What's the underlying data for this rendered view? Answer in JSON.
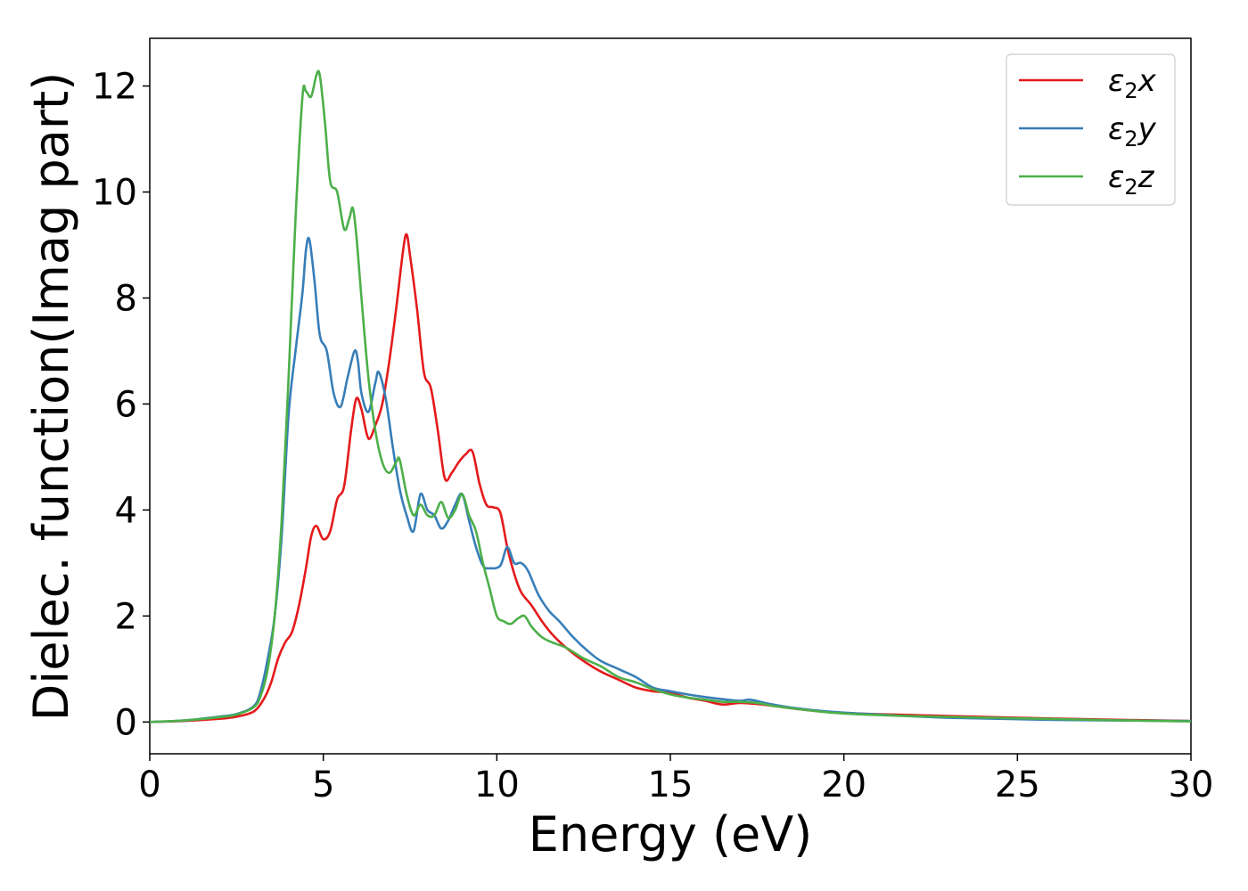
{
  "chart_data": {
    "type": "line",
    "xlabel": "Energy (eV)",
    "ylabel": "Dielec. function(Imag part)",
    "xlim": [
      0,
      30
    ],
    "ylim": [
      -0.6,
      12.9
    ],
    "xticks": [
      0,
      5,
      10,
      15,
      20,
      25,
      30
    ],
    "yticks": [
      0,
      2,
      4,
      6,
      8,
      10,
      12
    ],
    "grid": false,
    "legend_position": "top-right",
    "series": [
      {
        "name": "ε₂x",
        "legend_base": "ε",
        "legend_sub": "2",
        "legend_suffix": "x",
        "color": "#e41a1c",
        "x": [
          0,
          1,
          2,
          2.5,
          3,
          3.3,
          3.5,
          3.7,
          3.9,
          4.1,
          4.3,
          4.5,
          4.65,
          4.8,
          5.0,
          5.2,
          5.4,
          5.6,
          5.8,
          5.95,
          6.1,
          6.3,
          6.5,
          6.7,
          6.9,
          7.1,
          7.3,
          7.4,
          7.5,
          7.7,
          7.9,
          8.1,
          8.3,
          8.5,
          8.7,
          8.9,
          9.1,
          9.3,
          9.5,
          9.7,
          9.9,
          10.1,
          10.3,
          10.5,
          10.7,
          11.0,
          11.3,
          11.6,
          12.0,
          12.5,
          13.0,
          13.5,
          14.0,
          14.5,
          15.0,
          15.5,
          16.0,
          16.5,
          17.0,
          17.5,
          18.0,
          19.0,
          20.0,
          22.0,
          25.0,
          28.0,
          30.0
        ],
        "y": [
          0.0,
          0.02,
          0.06,
          0.1,
          0.2,
          0.45,
          0.75,
          1.2,
          1.5,
          1.7,
          2.2,
          2.9,
          3.5,
          3.7,
          3.45,
          3.6,
          4.2,
          4.45,
          5.5,
          6.1,
          5.9,
          5.35,
          5.6,
          6.0,
          6.8,
          7.8,
          8.9,
          9.2,
          8.8,
          7.8,
          6.6,
          6.3,
          5.5,
          4.6,
          4.7,
          4.9,
          5.05,
          5.1,
          4.5,
          4.1,
          4.05,
          3.95,
          3.3,
          2.8,
          2.45,
          2.2,
          1.9,
          1.65,
          1.4,
          1.15,
          0.95,
          0.8,
          0.65,
          0.58,
          0.55,
          0.46,
          0.4,
          0.33,
          0.36,
          0.34,
          0.3,
          0.22,
          0.17,
          0.13,
          0.08,
          0.04,
          0.02
        ]
      },
      {
        "name": "ε₂y",
        "legend_base": "ε",
        "legend_sub": "2",
        "legend_suffix": "y",
        "color": "#377eb8",
        "x": [
          0,
          1,
          2,
          2.5,
          3,
          3.2,
          3.4,
          3.6,
          3.8,
          4.0,
          4.2,
          4.4,
          4.5,
          4.6,
          4.75,
          4.9,
          5.1,
          5.3,
          5.5,
          5.7,
          5.9,
          6.0,
          6.1,
          6.3,
          6.5,
          6.6,
          6.8,
          7.0,
          7.2,
          7.4,
          7.6,
          7.8,
          8.0,
          8.2,
          8.4,
          8.6,
          8.8,
          9.0,
          9.2,
          9.4,
          9.6,
          9.8,
          10.1,
          10.3,
          10.5,
          10.7,
          10.9,
          11.2,
          11.5,
          11.8,
          12.2,
          12.6,
          13.0,
          13.5,
          14.0,
          14.5,
          15.0,
          15.5,
          16.0,
          16.5,
          17.0,
          17.3,
          17.8,
          18.5,
          19.5,
          21.0,
          23.0,
          26.0,
          30.0
        ],
        "y": [
          0.0,
          0.03,
          0.1,
          0.15,
          0.3,
          0.6,
          1.2,
          2.0,
          3.5,
          5.8,
          7.0,
          8.1,
          8.9,
          9.1,
          8.3,
          7.3,
          7.0,
          6.2,
          5.95,
          6.5,
          7.0,
          6.8,
          6.2,
          5.85,
          6.4,
          6.6,
          6.1,
          5.2,
          4.4,
          3.9,
          3.6,
          4.3,
          4.0,
          3.9,
          3.65,
          3.8,
          4.1,
          4.3,
          3.8,
          3.3,
          2.95,
          2.9,
          2.95,
          3.3,
          3.0,
          3.0,
          2.85,
          2.4,
          2.1,
          1.9,
          1.6,
          1.35,
          1.15,
          1.0,
          0.85,
          0.65,
          0.58,
          0.52,
          0.47,
          0.43,
          0.4,
          0.42,
          0.35,
          0.27,
          0.2,
          0.14,
          0.08,
          0.04,
          0.02
        ]
      },
      {
        "name": "ε₂z",
        "legend_base": "ε",
        "legend_sub": "2",
        "legend_suffix": "z",
        "color": "#4daf4a",
        "x": [
          0,
          1,
          2,
          2.5,
          3,
          3.2,
          3.4,
          3.6,
          3.8,
          4.0,
          4.2,
          4.4,
          4.5,
          4.65,
          4.8,
          4.9,
          5.05,
          5.2,
          5.4,
          5.6,
          5.75,
          5.85,
          5.95,
          6.1,
          6.3,
          6.5,
          6.7,
          6.9,
          7.1,
          7.2,
          7.4,
          7.6,
          7.8,
          8.0,
          8.2,
          8.4,
          8.6,
          8.8,
          9.0,
          9.2,
          9.4,
          9.6,
          9.8,
          10.0,
          10.2,
          10.4,
          10.6,
          10.8,
          11.0,
          11.3,
          11.6,
          12.0,
          12.5,
          13.0,
          13.5,
          14.0,
          14.5,
          15.0,
          15.5,
          16.0,
          16.5,
          17.0,
          17.5,
          18.0,
          19.0,
          20.0,
          22.0,
          25.0,
          28.0,
          30.0
        ],
        "y": [
          0.0,
          0.03,
          0.09,
          0.14,
          0.28,
          0.5,
          1.0,
          2.0,
          3.8,
          6.5,
          9.5,
          11.8,
          11.9,
          11.8,
          12.2,
          12.2,
          11.3,
          10.2,
          10.0,
          9.3,
          9.5,
          9.7,
          9.2,
          8.0,
          6.5,
          5.5,
          4.9,
          4.7,
          4.9,
          4.95,
          4.3,
          3.9,
          4.1,
          3.9,
          3.9,
          4.15,
          3.85,
          4.0,
          4.3,
          3.9,
          3.6,
          3.0,
          2.5,
          2.0,
          1.9,
          1.85,
          1.95,
          2.0,
          1.8,
          1.6,
          1.5,
          1.4,
          1.2,
          1.05,
          0.85,
          0.75,
          0.62,
          0.52,
          0.46,
          0.42,
          0.38,
          0.38,
          0.36,
          0.3,
          0.22,
          0.16,
          0.11,
          0.07,
          0.03,
          0.01
        ]
      }
    ]
  }
}
